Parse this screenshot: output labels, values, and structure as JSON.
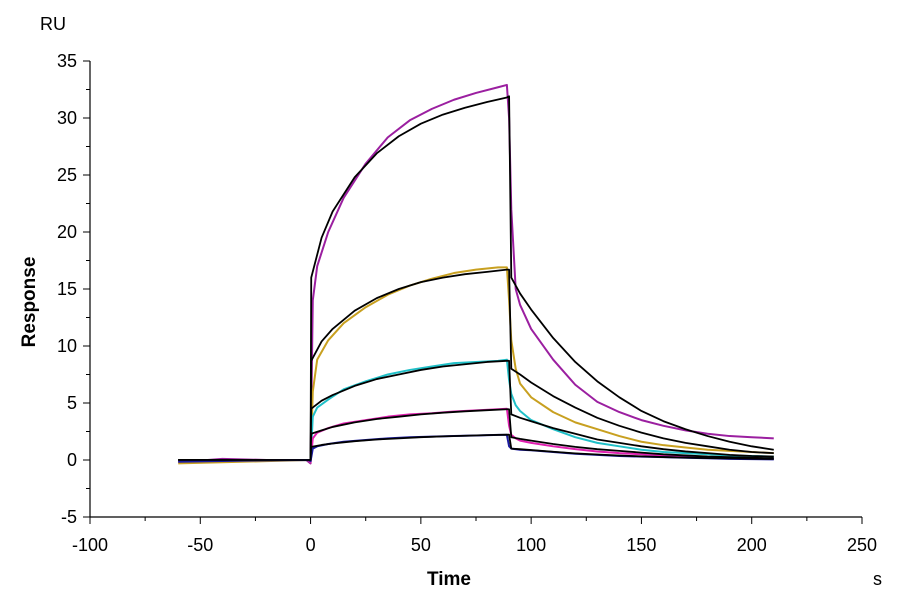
{
  "chart_data": {
    "type": "line",
    "title": "",
    "xlabel": "Time",
    "ylabel": "Response",
    "x_unit": "s",
    "y_unit": "RU",
    "xlim": [
      -100,
      250
    ],
    "ylim": [
      -5,
      35
    ],
    "x_ticks": [
      -100,
      -50,
      0,
      50,
      100,
      150,
      200,
      250
    ],
    "y_ticks": [
      -5,
      0,
      5,
      10,
      15,
      20,
      25,
      30,
      35
    ],
    "grid": false,
    "legend": "none",
    "series": [
      {
        "color": "#9b1fa0",
        "points": [
          [
            -60,
            -0.2
          ],
          [
            -40,
            0.1
          ],
          [
            -20,
            0
          ],
          [
            -2,
            0
          ],
          [
            0,
            -0.3
          ],
          [
            1,
            14
          ],
          [
            3,
            17
          ],
          [
            8,
            20
          ],
          [
            15,
            23
          ],
          [
            25,
            26
          ],
          [
            35,
            28.3
          ],
          [
            45,
            29.8
          ],
          [
            55,
            30.8
          ],
          [
            65,
            31.6
          ],
          [
            75,
            32.2
          ],
          [
            85,
            32.7
          ],
          [
            89,
            32.9
          ],
          [
            90,
            30
          ],
          [
            91,
            22
          ],
          [
            93,
            15
          ],
          [
            95,
            13.6
          ],
          [
            100,
            11.5
          ],
          [
            110,
            8.8
          ],
          [
            120,
            6.6
          ],
          [
            130,
            5.1
          ],
          [
            140,
            4.2
          ],
          [
            150,
            3.5
          ],
          [
            160,
            3.0
          ],
          [
            170,
            2.6
          ],
          [
            180,
            2.3
          ],
          [
            190,
            2.1
          ],
          [
            200,
            2.0
          ],
          [
            210,
            1.9
          ]
        ]
      },
      {
        "color": "#000000",
        "points": [
          [
            -60,
            -0.1
          ],
          [
            -30,
            0
          ],
          [
            -1,
            0
          ],
          [
            0,
            0
          ],
          [
            0.3,
            16
          ],
          [
            5,
            19.5
          ],
          [
            10,
            21.8
          ],
          [
            20,
            24.8
          ],
          [
            30,
            26.9
          ],
          [
            40,
            28.4
          ],
          [
            50,
            29.5
          ],
          [
            60,
            30.3
          ],
          [
            70,
            30.9
          ],
          [
            80,
            31.4
          ],
          [
            89,
            31.8
          ],
          [
            90,
            31.9
          ],
          [
            91,
            16
          ],
          [
            95,
            14.6
          ],
          [
            100,
            13.2
          ],
          [
            110,
            10.7
          ],
          [
            120,
            8.6
          ],
          [
            130,
            6.9
          ],
          [
            140,
            5.5
          ],
          [
            150,
            4.3
          ],
          [
            160,
            3.4
          ],
          [
            170,
            2.7
          ],
          [
            180,
            2.1
          ],
          [
            190,
            1.6
          ],
          [
            200,
            1.2
          ],
          [
            210,
            0.9
          ]
        ]
      },
      {
        "color": "#c8a020",
        "points": [
          [
            -60,
            -0.3
          ],
          [
            -40,
            -0.2
          ],
          [
            -20,
            -0.1
          ],
          [
            -1,
            0
          ],
          [
            0,
            -0.2
          ],
          [
            1,
            6
          ],
          [
            3,
            8.8
          ],
          [
            8,
            10.5
          ],
          [
            15,
            12
          ],
          [
            25,
            13.4
          ],
          [
            35,
            14.5
          ],
          [
            45,
            15.3
          ],
          [
            55,
            15.9
          ],
          [
            65,
            16.4
          ],
          [
            75,
            16.7
          ],
          [
            85,
            16.9
          ],
          [
            89,
            16.9
          ],
          [
            90,
            14
          ],
          [
            91,
            10.5
          ],
          [
            93,
            8
          ],
          [
            95,
            6.7
          ],
          [
            100,
            5.5
          ],
          [
            110,
            4.2
          ],
          [
            120,
            3.3
          ],
          [
            130,
            2.7
          ],
          [
            140,
            2.1
          ],
          [
            150,
            1.6
          ],
          [
            160,
            1.3
          ],
          [
            170,
            1.1
          ],
          [
            180,
            0.9
          ],
          [
            190,
            0.8
          ],
          [
            200,
            0.7
          ],
          [
            210,
            0.6
          ]
        ]
      },
      {
        "color": "#000000",
        "points": [
          [
            -60,
            0
          ],
          [
            -1,
            0
          ],
          [
            0,
            0
          ],
          [
            0.3,
            8.7
          ],
          [
            5,
            10.4
          ],
          [
            10,
            11.5
          ],
          [
            20,
            13.1
          ],
          [
            30,
            14.2
          ],
          [
            40,
            15
          ],
          [
            50,
            15.6
          ],
          [
            60,
            16
          ],
          [
            70,
            16.3
          ],
          [
            80,
            16.5
          ],
          [
            89,
            16.7
          ],
          [
            90,
            16.7
          ],
          [
            91,
            8
          ],
          [
            95,
            7.5
          ],
          [
            100,
            6.8
          ],
          [
            110,
            5.6
          ],
          [
            120,
            4.6
          ],
          [
            130,
            3.7
          ],
          [
            140,
            3.0
          ],
          [
            150,
            2.4
          ],
          [
            160,
            1.9
          ],
          [
            170,
            1.5
          ],
          [
            180,
            1.2
          ],
          [
            190,
            0.9
          ],
          [
            200,
            0.7
          ],
          [
            210,
            0.6
          ]
        ]
      },
      {
        "color": "#20c0c8",
        "points": [
          [
            -60,
            -0.1
          ],
          [
            -30,
            0
          ],
          [
            -1,
            0
          ],
          [
            0,
            -0.1
          ],
          [
            1,
            3.8
          ],
          [
            3,
            4.6
          ],
          [
            8,
            5.3
          ],
          [
            15,
            6.2
          ],
          [
            25,
            6.9
          ],
          [
            35,
            7.5
          ],
          [
            45,
            7.9
          ],
          [
            55,
            8.2
          ],
          [
            65,
            8.5
          ],
          [
            75,
            8.6
          ],
          [
            85,
            8.7
          ],
          [
            89,
            8.8
          ],
          [
            90,
            7
          ],
          [
            91,
            5.8
          ],
          [
            93,
            4.8
          ],
          [
            95,
            4.3
          ],
          [
            100,
            3.5
          ],
          [
            110,
            2.7
          ],
          [
            120,
            2.0
          ],
          [
            130,
            1.5
          ],
          [
            140,
            1.2
          ],
          [
            150,
            0.9
          ],
          [
            160,
            0.7
          ],
          [
            170,
            0.6
          ],
          [
            180,
            0.5
          ],
          [
            190,
            0.4
          ],
          [
            200,
            0.35
          ],
          [
            210,
            0.3
          ]
        ]
      },
      {
        "color": "#000000",
        "points": [
          [
            -60,
            0
          ],
          [
            -1,
            0
          ],
          [
            0,
            0
          ],
          [
            0.3,
            4.5
          ],
          [
            5,
            5.2
          ],
          [
            10,
            5.7
          ],
          [
            20,
            6.5
          ],
          [
            30,
            7.1
          ],
          [
            40,
            7.5
          ],
          [
            50,
            7.9
          ],
          [
            60,
            8.2
          ],
          [
            70,
            8.4
          ],
          [
            80,
            8.6
          ],
          [
            89,
            8.7
          ],
          [
            90,
            8.7
          ],
          [
            91,
            4
          ],
          [
            95,
            3.7
          ],
          [
            100,
            3.4
          ],
          [
            110,
            2.8
          ],
          [
            120,
            2.3
          ],
          [
            130,
            1.8
          ],
          [
            140,
            1.5
          ],
          [
            150,
            1.2
          ],
          [
            160,
            0.95
          ],
          [
            170,
            0.75
          ],
          [
            180,
            0.6
          ],
          [
            190,
            0.45
          ],
          [
            200,
            0.35
          ],
          [
            210,
            0.3
          ]
        ]
      },
      {
        "color": "#e020b0",
        "points": [
          [
            -60,
            -0.1
          ],
          [
            -30,
            0
          ],
          [
            -1,
            0
          ],
          [
            0,
            -0.2
          ],
          [
            1,
            1.9
          ],
          [
            3,
            2.4
          ],
          [
            8,
            2.8
          ],
          [
            15,
            3.2
          ],
          [
            25,
            3.5
          ],
          [
            35,
            3.8
          ],
          [
            45,
            4.0
          ],
          [
            55,
            4.1
          ],
          [
            65,
            4.25
          ],
          [
            75,
            4.35
          ],
          [
            85,
            4.45
          ],
          [
            89,
            4.5
          ],
          [
            90,
            3
          ],
          [
            91,
            2.2
          ],
          [
            93,
            1.9
          ],
          [
            95,
            1.7
          ],
          [
            100,
            1.5
          ],
          [
            110,
            1.2
          ],
          [
            120,
            0.95
          ],
          [
            130,
            0.75
          ],
          [
            140,
            0.6
          ],
          [
            150,
            0.5
          ],
          [
            160,
            0.4
          ],
          [
            170,
            0.3
          ],
          [
            180,
            0.25
          ],
          [
            190,
            0.2
          ],
          [
            200,
            0.15
          ],
          [
            210,
            0.1
          ]
        ]
      },
      {
        "color": "#000000",
        "points": [
          [
            -60,
            0
          ],
          [
            -1,
            0
          ],
          [
            0,
            0
          ],
          [
            0.3,
            2.3
          ],
          [
            5,
            2.6
          ],
          [
            10,
            2.9
          ],
          [
            20,
            3.3
          ],
          [
            30,
            3.6
          ],
          [
            40,
            3.8
          ],
          [
            50,
            4.0
          ],
          [
            60,
            4.15
          ],
          [
            70,
            4.27
          ],
          [
            80,
            4.37
          ],
          [
            89,
            4.45
          ],
          [
            90,
            4.45
          ],
          [
            91,
            2
          ],
          [
            95,
            1.85
          ],
          [
            100,
            1.7
          ],
          [
            110,
            1.4
          ],
          [
            120,
            1.15
          ],
          [
            130,
            0.95
          ],
          [
            140,
            0.8
          ],
          [
            150,
            0.65
          ],
          [
            160,
            0.5
          ],
          [
            170,
            0.4
          ],
          [
            180,
            0.3
          ],
          [
            190,
            0.25
          ],
          [
            200,
            0.2
          ],
          [
            210,
            0.15
          ]
        ]
      },
      {
        "color": "#1a1aa0",
        "points": [
          [
            -60,
            -0.15
          ],
          [
            -30,
            -0.05
          ],
          [
            -1,
            0
          ],
          [
            0,
            -0.1
          ],
          [
            1,
            1
          ],
          [
            3,
            1.2
          ],
          [
            8,
            1.4
          ],
          [
            15,
            1.6
          ],
          [
            25,
            1.75
          ],
          [
            35,
            1.9
          ],
          [
            45,
            2.0
          ],
          [
            55,
            2.05
          ],
          [
            65,
            2.1
          ],
          [
            75,
            2.15
          ],
          [
            85,
            2.2
          ],
          [
            89,
            2.2
          ],
          [
            90,
            1.2
          ],
          [
            91,
            1.0
          ],
          [
            95,
            0.9
          ],
          [
            100,
            0.85
          ],
          [
            110,
            0.7
          ],
          [
            120,
            0.55
          ],
          [
            130,
            0.45
          ],
          [
            140,
            0.35
          ],
          [
            150,
            0.3
          ],
          [
            160,
            0.25
          ],
          [
            170,
            0.2
          ],
          [
            180,
            0.15
          ],
          [
            190,
            0.1
          ],
          [
            200,
            0.08
          ],
          [
            210,
            0.05
          ]
        ]
      },
      {
        "color": "#000000",
        "points": [
          [
            -60,
            0
          ],
          [
            -1,
            0
          ],
          [
            0,
            0
          ],
          [
            0.3,
            1.15
          ],
          [
            5,
            1.32
          ],
          [
            10,
            1.45
          ],
          [
            20,
            1.65
          ],
          [
            30,
            1.8
          ],
          [
            40,
            1.9
          ],
          [
            50,
            2.0
          ],
          [
            60,
            2.07
          ],
          [
            70,
            2.13
          ],
          [
            80,
            2.18
          ],
          [
            89,
            2.22
          ],
          [
            90,
            2.22
          ],
          [
            91,
            1.0
          ],
          [
            95,
            0.95
          ],
          [
            100,
            0.87
          ],
          [
            110,
            0.72
          ],
          [
            120,
            0.58
          ],
          [
            130,
            0.48
          ],
          [
            140,
            0.39
          ],
          [
            150,
            0.32
          ],
          [
            160,
            0.26
          ],
          [
            170,
            0.21
          ],
          [
            180,
            0.17
          ],
          [
            190,
            0.14
          ],
          [
            200,
            0.11
          ],
          [
            210,
            0.09
          ]
        ]
      }
    ]
  }
}
